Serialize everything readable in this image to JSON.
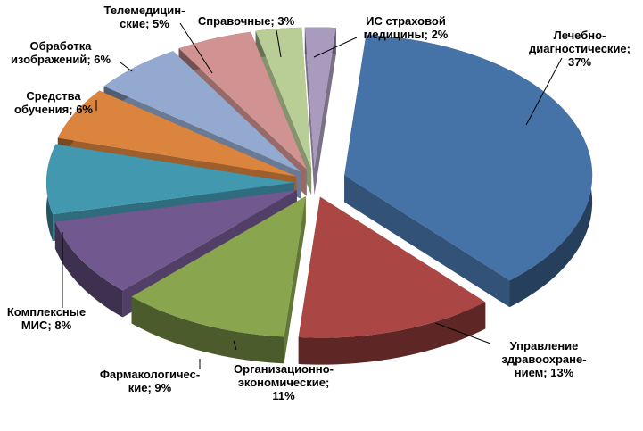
{
  "chart_data": {
    "type": "pie",
    "style": "3d-exploded",
    "title": "",
    "legend": "none",
    "slices": [
      {
        "label_lines": [
          "Лечебно-",
          "диагностические;",
          "37%"
        ],
        "value": 37,
        "color": "#4572a7"
      },
      {
        "label_lines": [
          "Управление",
          "здравоохране-",
          "нием; 13%"
        ],
        "value": 13,
        "color": "#aa4643"
      },
      {
        "label_lines": [
          "Организационно-",
          "экономические;",
          "11%"
        ],
        "value": 11,
        "color": "#89a54e"
      },
      {
        "label_lines": [
          "Фармакологичес-",
          "кие; 9%"
        ],
        "value": 9,
        "color": "#71588f"
      },
      {
        "label_lines": [
          "Комплексные",
          "МИС; 8%"
        ],
        "value": 8,
        "color": "#4198af"
      },
      {
        "label_lines": [
          "Средства",
          "обучения; 6%"
        ],
        "value": 6,
        "color": "#db843d"
      },
      {
        "label_lines": [
          "Обработка",
          "изображений; 6%"
        ],
        "value": 6,
        "color": "#93a9cf"
      },
      {
        "label_lines": [
          "Телемедицин-",
          "ские; 5%"
        ],
        "value": 5,
        "color": "#d19392"
      },
      {
        "label_lines": [
          "Справочные; 3%"
        ],
        "value": 3,
        "color": "#b9cd96"
      },
      {
        "label_lines": [
          "ИС страховой",
          "медицины; 2%"
        ],
        "value": 2,
        "color": "#a99bbd"
      }
    ]
  }
}
